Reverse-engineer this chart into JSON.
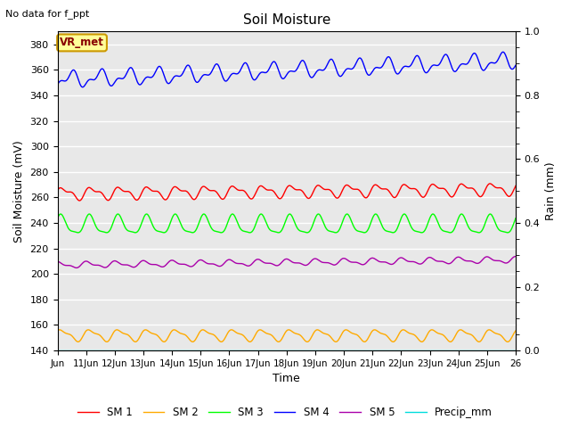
{
  "title": "Soil Moisture",
  "top_left_text": "No data for f_ppt",
  "xlabel": "Time",
  "ylabel_left": "Soil Moisture (mV)",
  "ylabel_right": "Rain (mm)",
  "ylim_left": [
    140,
    390
  ],
  "ylim_right": [
    0.0,
    1.0
  ],
  "yticks_left": [
    140,
    160,
    180,
    200,
    220,
    240,
    260,
    280,
    300,
    320,
    340,
    360,
    380
  ],
  "yticks_right": [
    0.0,
    0.2,
    0.4,
    0.6,
    0.8,
    1.0
  ],
  "xtick_positions": [
    0,
    1,
    2,
    3,
    4,
    5,
    6,
    7,
    8,
    9,
    10,
    11,
    12,
    13,
    14,
    15,
    16
  ],
  "xtick_labels": [
    "Jun",
    "11Jun",
    "12Jun",
    "13Jun",
    "14Jun",
    "15Jun",
    "16Jun",
    "17Jun",
    "18Jun",
    "19Jun",
    "20Jun",
    "21Jun",
    "22Jun",
    "23Jun",
    "24Jun",
    "25Jun",
    "26"
  ],
  "n_points": 1000,
  "sm1_base": 263,
  "sm1_amp": 4,
  "sm1_amp2": 2,
  "sm1_trend": 3.5,
  "sm1_color": "#ff0000",
  "sm2_base": 152,
  "sm2_amp": 4,
  "sm2_amp2": 1.5,
  "sm2_trend": 0.0,
  "sm2_color": "#ffaa00",
  "sm3_base": 238,
  "sm3_amp": 7,
  "sm3_amp2": 2,
  "sm3_trend": 0.0,
  "sm3_color": "#00ff00",
  "sm4_base": 352,
  "sm4_amp": 5,
  "sm4_amp2": 3,
  "sm4_trend": 15.0,
  "sm4_color": "#0000ff",
  "sm5_base": 207,
  "sm5_amp": 2,
  "sm5_amp2": 1,
  "sm5_trend": 4.0,
  "sm5_color": "#aa00aa",
  "precip_base": 140,
  "precip_color": "#00dddd",
  "plot_bg_color": "#e8e8e8",
  "fig_bg_color": "#ffffff",
  "grid_color": "#ffffff",
  "legend_labels": [
    "SM 1",
    "SM 2",
    "SM 3",
    "SM 4",
    "SM 5",
    "Precip_mm"
  ],
  "vr_met_text": "VR_met",
  "vr_met_bg": "#ffff99",
  "vr_met_border": "#cc9900",
  "vr_met_text_color": "#880000"
}
